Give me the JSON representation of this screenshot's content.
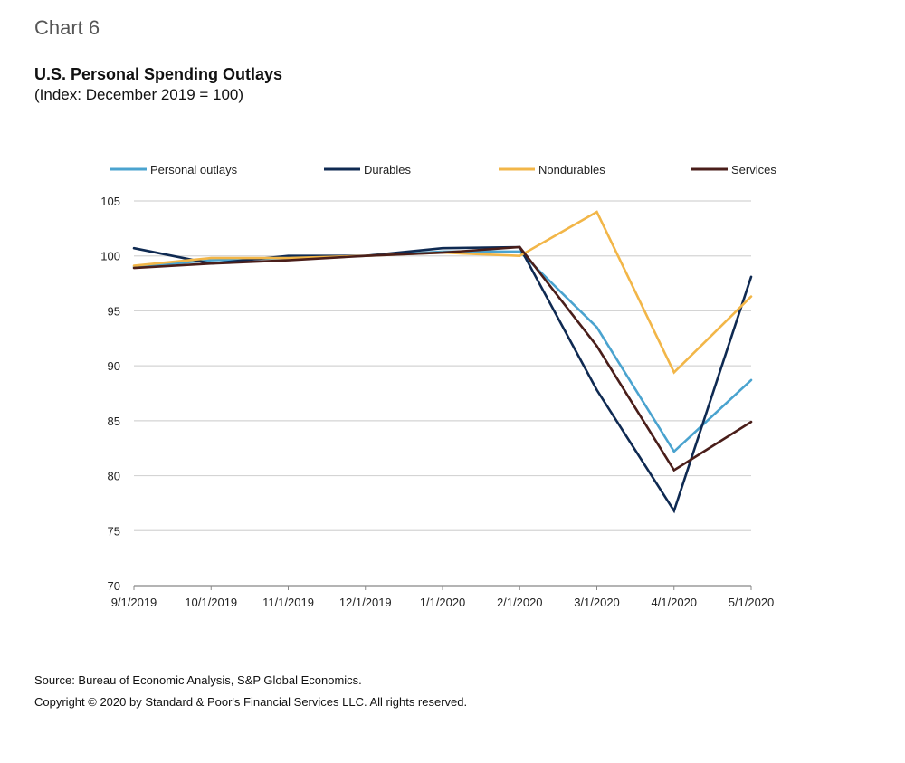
{
  "header": {
    "chart_label": "Chart 6"
  },
  "footer": {
    "source": "Source: Bureau of Economic Analysis, S&P Global Economics.",
    "copyright": "Copyright © 2020 by Standard & Poor's Financial Services LLC. All rights reserved."
  },
  "chart_data": {
    "type": "line",
    "title": "U.S. Personal Spending Outlays",
    "subtitle": "(Index: December 2019 = 100)",
    "xlabel": "",
    "ylabel": "",
    "ylim": [
      70,
      105
    ],
    "yticks": [
      105,
      100,
      95,
      90,
      85,
      80,
      75,
      70
    ],
    "grid": true,
    "legend_position": "top",
    "categories": [
      "9/1/2019",
      "10/1/2019",
      "11/1/2019",
      "12/1/2019",
      "1/1/2020",
      "2/1/2020",
      "3/1/2020",
      "4/1/2020",
      "5/1/2020"
    ],
    "series": [
      {
        "name": "Personal outlays",
        "color": "#4aa3cf",
        "values": [
          99.0,
          99.6,
          99.8,
          100.0,
          100.4,
          100.4,
          93.5,
          82.2,
          88.7
        ]
      },
      {
        "name": "Durables",
        "color": "#0f2a52",
        "values": [
          100.7,
          99.3,
          100.0,
          100.0,
          100.7,
          100.8,
          87.8,
          76.8,
          98.1
        ]
      },
      {
        "name": "Nondurables",
        "color": "#f2b648",
        "values": [
          99.1,
          99.8,
          99.8,
          100.0,
          100.3,
          100.0,
          104.0,
          89.4,
          96.3
        ]
      },
      {
        "name": "Services",
        "color": "#4a1e1a",
        "values": [
          98.9,
          99.3,
          99.6,
          100.0,
          100.3,
          100.8,
          91.8,
          80.5,
          84.9
        ]
      }
    ]
  }
}
